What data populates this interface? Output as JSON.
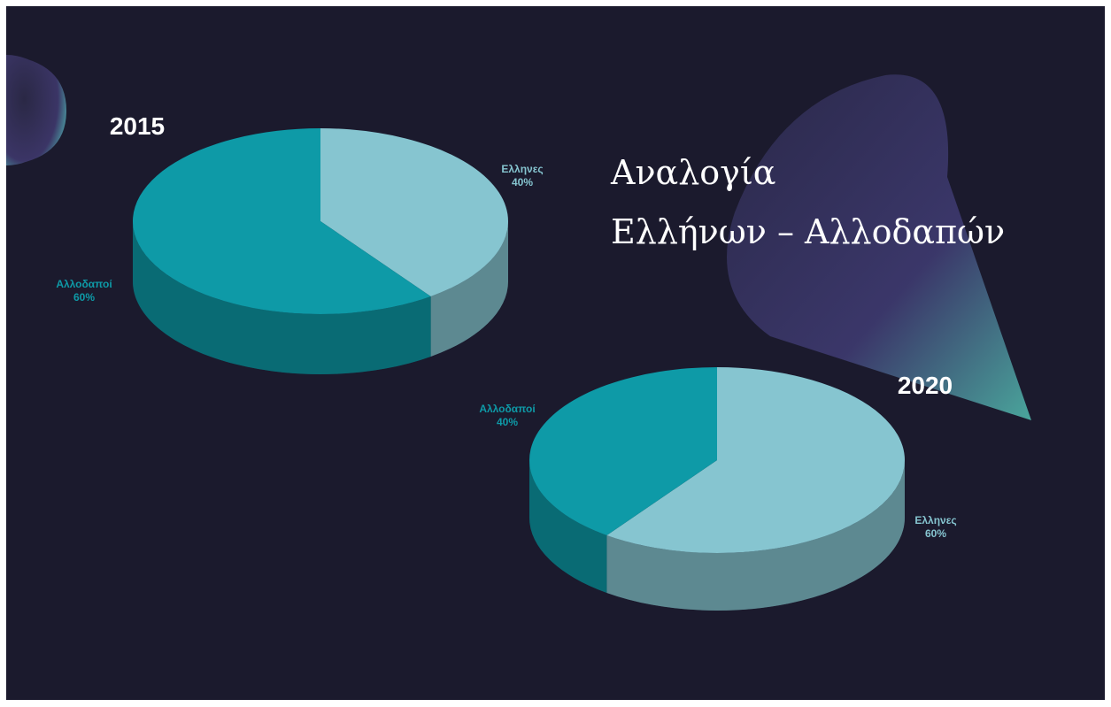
{
  "title": [
    "Αναλογία",
    "Ελλήνων – Αλλοδαπών"
  ],
  "chart_data": [
    {
      "type": "pie",
      "title": "2015",
      "categories": [
        "Ελληνες",
        "Αλλοδαποί"
      ],
      "values": [
        40,
        60
      ],
      "value_labels": [
        "40%",
        "60%"
      ],
      "colors": [
        "#86c5d0",
        "#0e9aa7"
      ]
    },
    {
      "type": "pie",
      "title": "2020",
      "categories": [
        "Ελληνες",
        "Αλλοδαποί"
      ],
      "values": [
        60,
        40
      ],
      "value_labels": [
        "60%",
        "40%"
      ],
      "colors": [
        "#86c5d0",
        "#0e9aa7"
      ]
    }
  ]
}
